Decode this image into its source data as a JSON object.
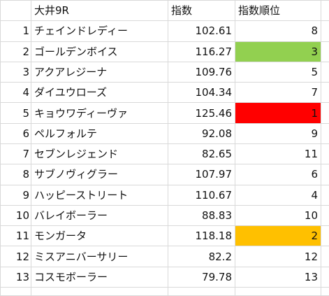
{
  "header": {
    "race": "大井9R",
    "score": "指数",
    "rank": "指数順位"
  },
  "colors": {
    "rank_1": "#ff0000",
    "rank_2": "#ffc000",
    "rank_3": "#92d050",
    "grid": "#d9d9d9"
  },
  "rows": [
    {
      "no": "1",
      "name": "チェインドレディー",
      "score": "102.61",
      "rank": "8",
      "highlight": ""
    },
    {
      "no": "2",
      "name": "ゴールデンボイス",
      "score": "116.27",
      "rank": "3",
      "highlight": "#92d050"
    },
    {
      "no": "3",
      "name": "アクアレジーナ",
      "score": "109.76",
      "rank": "5",
      "highlight": ""
    },
    {
      "no": "4",
      "name": "ダイユウローズ",
      "score": "104.34",
      "rank": "7",
      "highlight": ""
    },
    {
      "no": "5",
      "name": "キョウワディーヴァ",
      "score": "125.46",
      "rank": "1",
      "highlight": "#ff0000"
    },
    {
      "no": "6",
      "name": "ペルフォルテ",
      "score": "92.08",
      "rank": "9",
      "highlight": ""
    },
    {
      "no": "7",
      "name": "セブンレジェンド",
      "score": "82.65",
      "rank": "11",
      "highlight": ""
    },
    {
      "no": "8",
      "name": "サブノヴィグラー",
      "score": "107.97",
      "rank": "6",
      "highlight": ""
    },
    {
      "no": "9",
      "name": "ハッピーストリート",
      "score": "110.67",
      "rank": "4",
      "highlight": ""
    },
    {
      "no": "10",
      "name": "バレイボーラー",
      "score": "88.83",
      "rank": "10",
      "highlight": ""
    },
    {
      "no": "11",
      "name": "モンガータ",
      "score": "118.18",
      "rank": "2",
      "highlight": "#ffc000"
    },
    {
      "no": "12",
      "name": "ミスアニバーサリー",
      "score": "82.2",
      "rank": "12",
      "highlight": ""
    },
    {
      "no": "13",
      "name": "コスモボーラー",
      "score": "79.78",
      "rank": "13",
      "highlight": ""
    }
  ]
}
